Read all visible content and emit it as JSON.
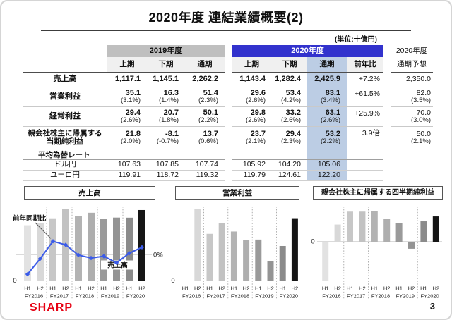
{
  "slide": {
    "title": "2020年度 連結業績概要(2)",
    "unit_label": "(単位:十億円)",
    "logo": "SHARP",
    "page_number": "3"
  },
  "table": {
    "group_headers": {
      "fy2019": "2019年度",
      "fy2020": "2020年度"
    },
    "period_headers_2019": [
      "上期",
      "下期",
      "通期"
    ],
    "period_headers_2020": [
      "上期",
      "下期",
      "通期",
      "前年比"
    ],
    "forecast_header_line1": "2020年度",
    "forecast_header_line2": "通期予想",
    "rows": [
      {
        "label": [
          "売上高"
        ],
        "values": [
          "1,117.1",
          "1,145.1",
          "2,262.2",
          "1,143.4",
          "1,282.4",
          "2,425.9"
        ],
        "subs": [],
        "yoy": "+7.2%",
        "forecast": "2,350.0",
        "forecast_sub": ""
      },
      {
        "label": [
          "営業利益"
        ],
        "values": [
          "35.1",
          "16.3",
          "51.4",
          "29.6",
          "53.4",
          "83.1"
        ],
        "subs": [
          "(3.1%)",
          "(1.4%)",
          "(2.3%)",
          "(2.6%)",
          "(4.2%)",
          "(3.4%)"
        ],
        "yoy": "+61.5%",
        "forecast": "82.0",
        "forecast_sub": "(3.5%)"
      },
      {
        "label": [
          "経常利益"
        ],
        "values": [
          "29.4",
          "20.7",
          "50.1",
          "29.8",
          "33.2",
          "63.1"
        ],
        "subs": [
          "(2.6%)",
          "(1.8%)",
          "(2.2%)",
          "(2.6%)",
          "(2.6%)",
          "(2.6%)"
        ],
        "yoy": "+25.9%",
        "forecast": "70.0",
        "forecast_sub": "(3.0%)"
      },
      {
        "label": [
          "親会社株主に帰属する",
          "当期純利益"
        ],
        "values": [
          "21.8",
          "-8.1",
          "13.7",
          "23.7",
          "29.4",
          "53.2"
        ],
        "subs": [
          "(2.0%)",
          "(-0.7%)",
          "(0.6%)",
          "(2.1%)",
          "(2.3%)",
          "(2.2%)"
        ],
        "yoy": "3.9倍",
        "forecast": "50.0",
        "forecast_sub": "(2.1%)"
      }
    ],
    "fx_section": {
      "header": "平均為替レート",
      "rows": [
        {
          "label": "ドル円",
          "values": [
            "107.63",
            "107.85",
            "107.74",
            "105.92",
            "104.20",
            "105.06"
          ]
        },
        {
          "label": "ユーロ円",
          "values": [
            "119.91",
            "118.72",
            "119.32",
            "119.79",
            "124.61",
            "122.20"
          ]
        }
      ]
    }
  },
  "chart_data": [
    {
      "type": "bar+line",
      "title": "売上高",
      "categories": [
        "H1 FY2016",
        "H2 FY2016",
        "H1 FY2017",
        "H2 FY2017",
        "H1 FY2018",
        "H2 FY2018",
        "H1 FY2019",
        "H2 FY2019",
        "H1 FY2020",
        "H2 FY2020"
      ],
      "half_labels": [
        "H1",
        "H2",
        "H1",
        "H2",
        "H1",
        "H2",
        "H1",
        "H2",
        "H1",
        "H2"
      ],
      "year_labels": [
        "FY2016",
        "FY2017",
        "FY2018",
        "FY2019",
        "FY2020"
      ],
      "series": [
        {
          "name": "売上高",
          "type": "bar",
          "values": [
            1006,
            1045,
            1132,
            1295,
            1168,
            1233,
            1117.1,
            1145.1,
            1143.4,
            1282.4
          ]
        },
        {
          "name": "前年同期比",
          "type": "line",
          "unit": "%",
          "values": [
            -33,
            -7,
            22,
            16,
            -1,
            -6,
            -3,
            -14,
            2,
            12
          ]
        }
      ],
      "axis": {
        "zero_label": "0",
        "zero_pct_label": "0%"
      },
      "line_label": "前年同期比",
      "bar_label": "売上高",
      "values_estimated": true
    },
    {
      "type": "bar",
      "title": "営業利益",
      "categories": [
        "H1 FY2016",
        "H2 FY2016",
        "H1 FY2017",
        "H2 FY2017",
        "H1 FY2018",
        "H2 FY2018",
        "H1 FY2019",
        "H2 FY2019",
        "H1 FY2020",
        "H2 FY2020"
      ],
      "half_labels": [
        "H1",
        "H2",
        "H1",
        "H2",
        "H1",
        "H2",
        "H1",
        "H2",
        "H1",
        "H2"
      ],
      "year_labels": [
        "FY2016",
        "FY2017",
        "FY2018",
        "FY2019",
        "FY2020"
      ],
      "series": [
        {
          "name": "営業利益",
          "type": "bar",
          "values": [
            0,
            61,
            40,
            49,
            42,
            35,
            35.1,
            16.3,
            29.6,
            53.4
          ]
        }
      ],
      "axis": {
        "zero_label": "0"
      },
      "values_estimated": true
    },
    {
      "type": "bar",
      "title": "親会社株主に帰属する四半期純利益",
      "categories": [
        "H1 FY2016",
        "H2 FY2016",
        "H1 FY2017",
        "H2 FY2017",
        "H1 FY2018",
        "H2 FY2018",
        "H1 FY2019",
        "H2 FY2019",
        "H1 FY2020",
        "H2 FY2020"
      ],
      "half_labels": [
        "H1",
        "H2",
        "H1",
        "H2",
        "H1",
        "H2",
        "H1",
        "H2",
        "H1",
        "H2"
      ],
      "year_labels": [
        "FY2016",
        "FY2017",
        "FY2018",
        "FY2019",
        "FY2020"
      ],
      "series": [
        {
          "name": "親会社株主に帰属する四半期純利益",
          "type": "bar",
          "values": [
            -45,
            20,
            35,
            35,
            36,
            27,
            21.8,
            -8.1,
            23.7,
            29.4
          ]
        }
      ],
      "axis": {
        "zero_label": "0"
      },
      "values_estimated": true
    }
  ],
  "colors": {
    "fy2020_header_bg": "#3232cd",
    "fy2019_header_bg": "#bfbfbf",
    "highlight_column_bg": "#bccde4",
    "subheader_band_bg": "#f0f0f0",
    "line_series_blue": "#3b5be8",
    "sharp_logo_red": "#e60012",
    "bar_shades_by_half": [
      "#e2e2e2",
      "#d8d8d8",
      "#c7c7c7",
      "#c2c2c2",
      "#b3b3b3",
      "#aeaeae",
      "#9a9a9a",
      "#949494",
      "#8b8b8b",
      "#151515"
    ]
  }
}
